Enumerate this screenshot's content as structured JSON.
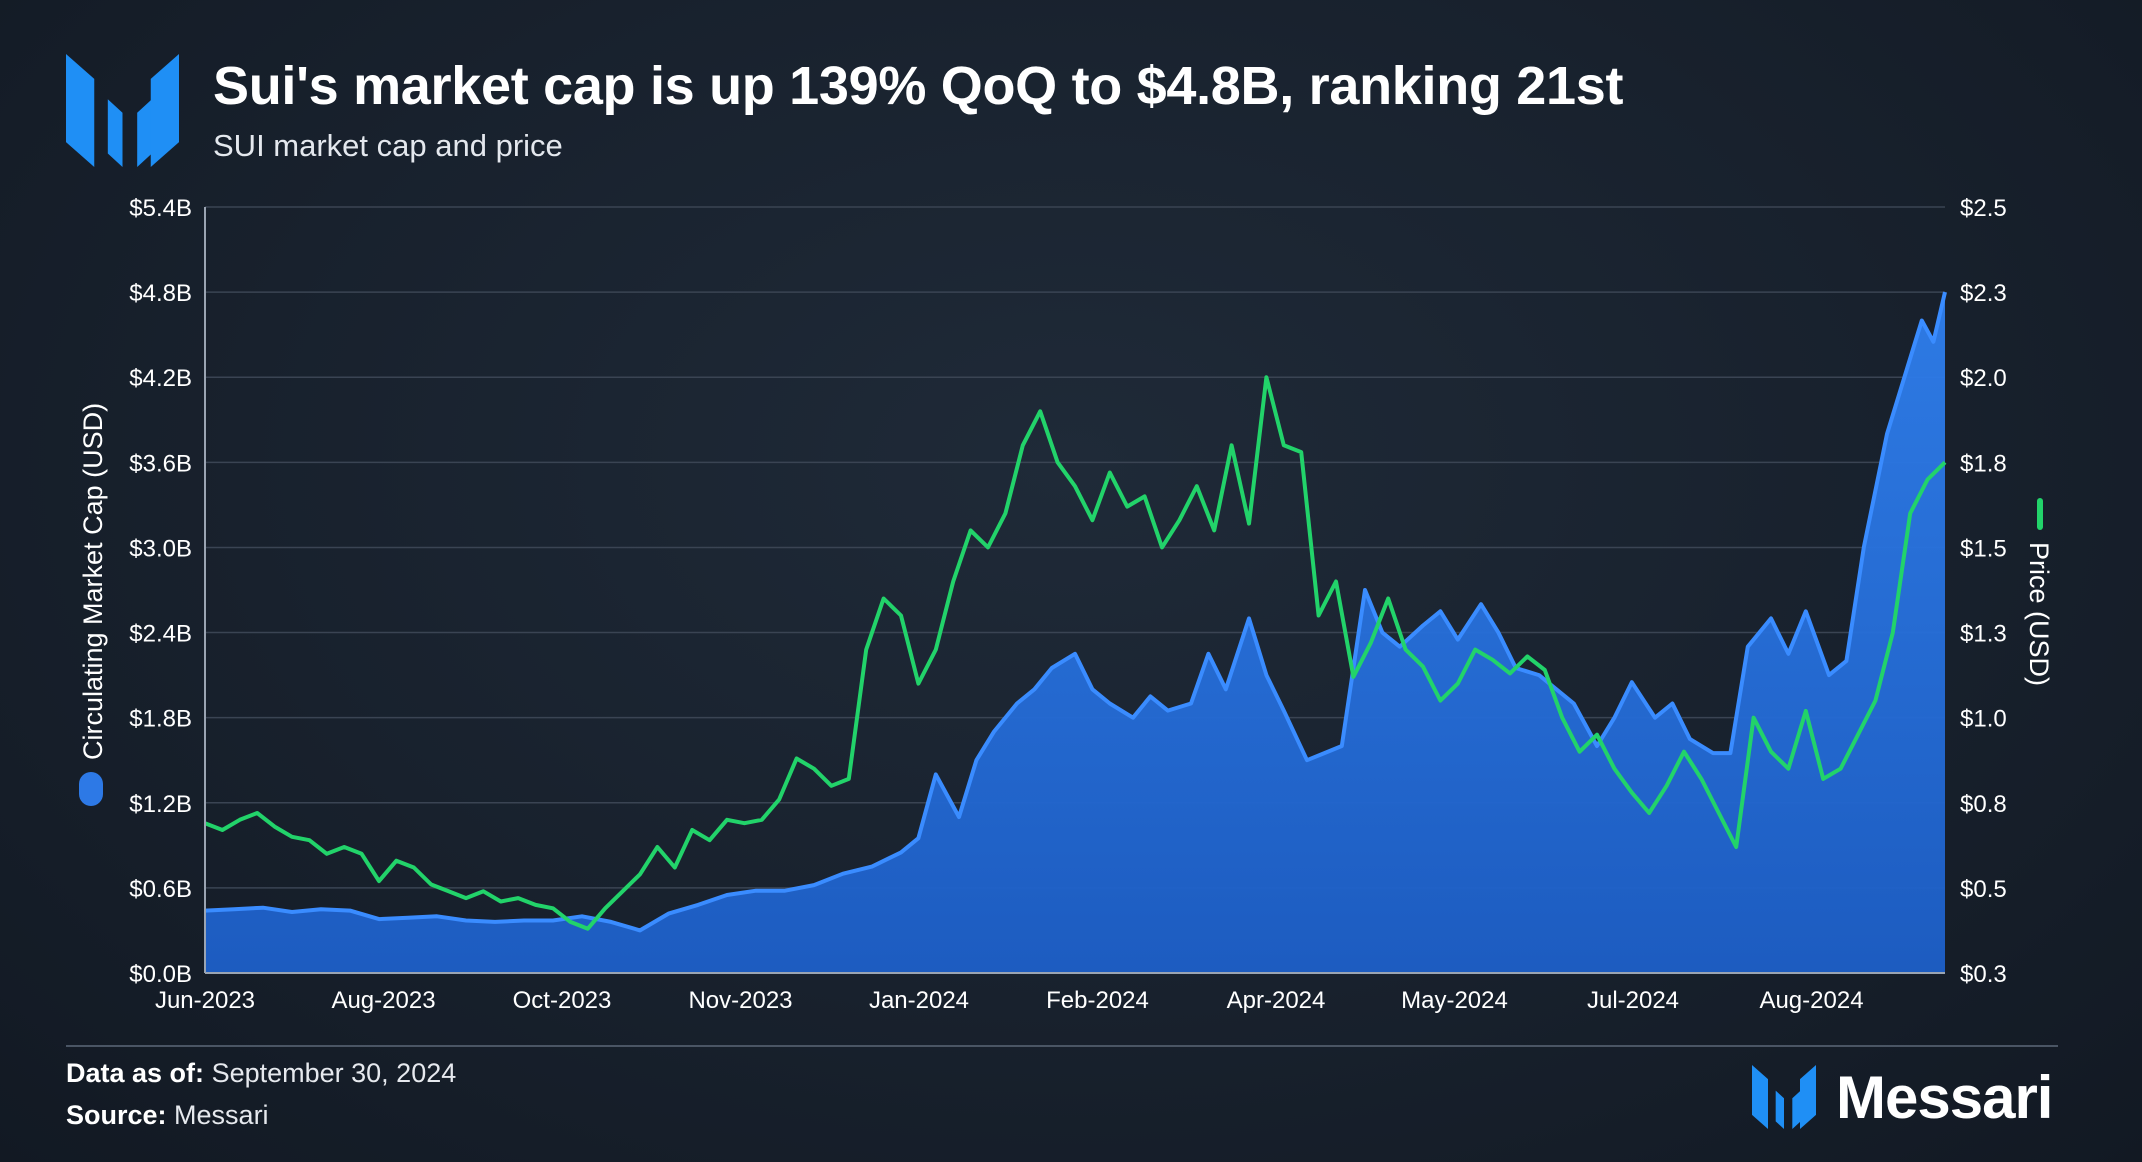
{
  "header": {
    "title": "Sui's market cap is up 139% QoQ to $4.8B, ranking 21st",
    "subtitle": "SUI market cap and price"
  },
  "footer": {
    "data_as_of_label": "Data as of:",
    "data_as_of_value": "September 30, 2024",
    "source_label": "Source:",
    "source_value": "Messari",
    "brand": "Messari"
  },
  "icons": {
    "logo": "messari-logo-icon",
    "brand": "messari-logo-icon"
  },
  "colors": {
    "background": "#18212d",
    "market_cap": "#2d79e6",
    "price": "#22d36a",
    "brand": "#1f8ff5"
  },
  "chart_data": {
    "type": "area",
    "title": "Sui's market cap is up 139% QoQ to $4.8B, ranking 21st",
    "subtitle": "SUI market cap and price",
    "xlabel": "",
    "ylabel": "Circulating Market Cap (USD)",
    "y2label": "Price (USD)",
    "categories": [
      "Jun-2023",
      "Aug-2023",
      "Oct-2023",
      "Nov-2023",
      "Jan-2024",
      "Feb-2024",
      "Apr-2024",
      "May-2024",
      "Jul-2024",
      "Aug-2024"
    ],
    "x_range": [
      0,
      30
    ],
    "ylim": [
      0,
      5.4
    ],
    "y2lim": [
      0.25,
      2.5
    ],
    "yticks": [
      "$0.0B",
      "$0.6B",
      "$1.2B",
      "$1.8B",
      "$2.4B",
      "$3.0B",
      "$3.6B",
      "$4.2B",
      "$4.8B",
      "$5.4B"
    ],
    "y2ticks": [
      "$0.3",
      "$0.5",
      "$0.8",
      "$1.0",
      "$1.3",
      "$1.5",
      "$1.8",
      "$2.0",
      "$2.3",
      "$2.5"
    ],
    "grid": true,
    "legend": "left and right axis labels",
    "series": [
      {
        "name": "Circulating Market Cap (USD)",
        "type": "area",
        "axis": "left",
        "unit": "B USD",
        "x": [
          0,
          0.5,
          1,
          1.5,
          2,
          2.5,
          3,
          3.5,
          4,
          4.5,
          5,
          5.5,
          6,
          6.5,
          7,
          7.5,
          8,
          8.5,
          9,
          9.5,
          10,
          10.5,
          11,
          11.5,
          12,
          12.3,
          12.6,
          13,
          13.3,
          13.6,
          14,
          14.3,
          14.6,
          15,
          15.3,
          15.6,
          16,
          16.3,
          16.6,
          17,
          17.3,
          17.6,
          18,
          18.3,
          18.6,
          19,
          19.3,
          19.6,
          20,
          20.3,
          20.6,
          21,
          21.3,
          21.6,
          22,
          22.3,
          22.6,
          23,
          23.3,
          23.6,
          24,
          24.3,
          24.6,
          25,
          25.3,
          25.6,
          26,
          26.3,
          26.6,
          27,
          27.3,
          27.6,
          28,
          28.3,
          28.6,
          29,
          29.3,
          29.6,
          29.8,
          30
        ],
        "values": [
          0.44,
          0.45,
          0.46,
          0.43,
          0.45,
          0.44,
          0.38,
          0.39,
          0.4,
          0.37,
          0.36,
          0.37,
          0.37,
          0.4,
          0.36,
          0.3,
          0.42,
          0.48,
          0.55,
          0.58,
          0.58,
          0.62,
          0.7,
          0.75,
          0.85,
          0.95,
          1.4,
          1.1,
          1.5,
          1.7,
          1.9,
          2.0,
          2.15,
          2.25,
          2.0,
          1.9,
          1.8,
          1.95,
          1.85,
          1.9,
          2.25,
          2.0,
          2.5,
          2.1,
          1.85,
          1.5,
          1.55,
          1.6,
          2.7,
          2.4,
          2.3,
          2.45,
          2.55,
          2.35,
          2.6,
          2.4,
          2.15,
          2.1,
          2.0,
          1.9,
          1.6,
          1.8,
          2.05,
          1.8,
          1.9,
          1.65,
          1.55,
          1.55,
          2.3,
          2.5,
          2.25,
          2.55,
          2.1,
          2.2,
          3.0,
          3.8,
          4.2,
          4.6,
          4.45,
          4.8
        ]
      },
      {
        "name": "Price (USD)",
        "type": "line",
        "axis": "right",
        "unit": "USD",
        "x": [
          0,
          0.3,
          0.6,
          0.9,
          1.2,
          1.5,
          1.8,
          2.1,
          2.4,
          2.7,
          3.0,
          3.3,
          3.6,
          3.9,
          4.2,
          4.5,
          4.8,
          5.1,
          5.4,
          5.7,
          6.0,
          6.3,
          6.6,
          6.9,
          7.2,
          7.5,
          7.8,
          8.1,
          8.4,
          8.7,
          9.0,
          9.3,
          9.6,
          9.9,
          10.2,
          10.5,
          10.8,
          11.1,
          11.4,
          11.7,
          12.0,
          12.3,
          12.6,
          12.9,
          13.2,
          13.5,
          13.8,
          14.1,
          14.4,
          14.7,
          15.0,
          15.3,
          15.6,
          15.9,
          16.2,
          16.5,
          16.8,
          17.1,
          17.4,
          17.7,
          18.0,
          18.3,
          18.6,
          18.9,
          19.2,
          19.5,
          19.8,
          20.1,
          20.4,
          20.7,
          21.0,
          21.3,
          21.6,
          21.9,
          22.2,
          22.5,
          22.8,
          23.1,
          23.4,
          23.7,
          24.0,
          24.3,
          24.6,
          24.9,
          25.2,
          25.5,
          25.8,
          26.1,
          26.4,
          26.7,
          27.0,
          27.3,
          27.6,
          27.9,
          28.2,
          28.5,
          28.8,
          29.1,
          29.4,
          29.7,
          30.0
        ],
        "values": [
          0.69,
          0.67,
          0.7,
          0.72,
          0.68,
          0.65,
          0.64,
          0.6,
          0.62,
          0.6,
          0.52,
          0.58,
          0.56,
          0.51,
          0.49,
          0.47,
          0.49,
          0.46,
          0.47,
          0.45,
          0.44,
          0.4,
          0.38,
          0.44,
          0.49,
          0.54,
          0.62,
          0.56,
          0.67,
          0.64,
          0.7,
          0.69,
          0.7,
          0.76,
          0.88,
          0.85,
          0.8,
          0.82,
          1.2,
          1.35,
          1.3,
          1.1,
          1.2,
          1.4,
          1.55,
          1.5,
          1.6,
          1.8,
          1.9,
          1.75,
          1.68,
          1.58,
          1.72,
          1.62,
          1.65,
          1.5,
          1.58,
          1.68,
          1.55,
          1.8,
          1.57,
          2.0,
          1.8,
          1.78,
          1.3,
          1.4,
          1.12,
          1.22,
          1.35,
          1.2,
          1.15,
          1.05,
          1.1,
          1.2,
          1.17,
          1.13,
          1.18,
          1.14,
          1.0,
          0.9,
          0.95,
          0.85,
          0.78,
          0.72,
          0.8,
          0.9,
          0.82,
          0.72,
          0.62,
          1.0,
          0.9,
          0.85,
          1.02,
          0.82,
          0.85,
          0.95,
          1.05,
          1.25,
          1.6,
          1.7,
          1.75
        ]
      }
    ]
  }
}
